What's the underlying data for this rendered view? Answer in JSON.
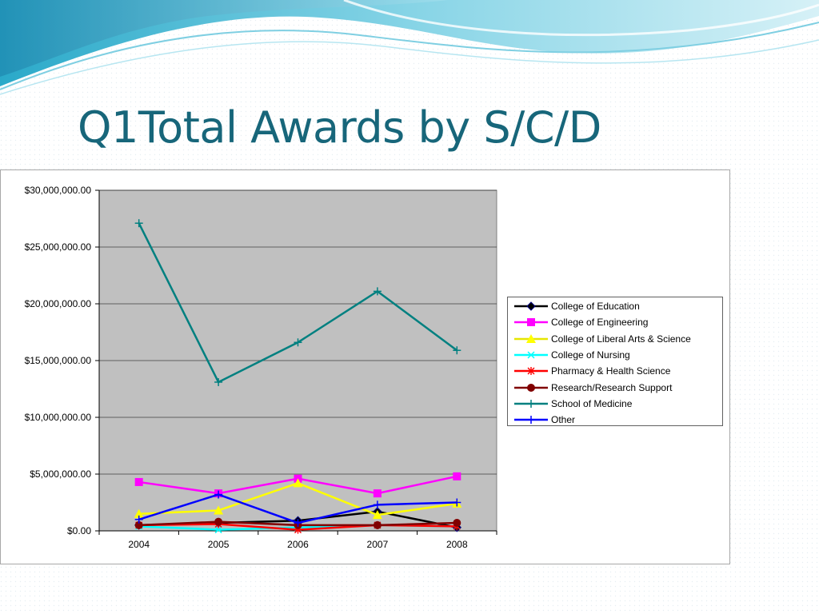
{
  "slide": {
    "title": "Q1Total Awards by S/C/D"
  },
  "chart_data": {
    "type": "line",
    "title": "",
    "xlabel": "",
    "ylabel": "",
    "categories": [
      "2004",
      "2005",
      "2006",
      "2007",
      "2008"
    ],
    "ylim": [
      0,
      30000000
    ],
    "ytick_values": [
      0,
      5000000,
      10000000,
      15000000,
      20000000,
      25000000,
      30000000
    ],
    "ytick_labels": [
      "$0.00",
      "$5,000,000.00",
      "$10,000,000.00",
      "$15,000,000.00",
      "$20,000,000.00",
      "$25,000,000.00",
      "$30,000,000.00"
    ],
    "grid": "horizontal",
    "legend_position": "right",
    "plot_background": "#c0c0c0",
    "series": [
      {
        "name": "College of Education",
        "color": "#000000",
        "marker": "diamond",
        "values": [
          500000,
          700000,
          900000,
          1700000,
          300000
        ]
      },
      {
        "name": "College of Engineering",
        "color": "#ff00ff",
        "marker": "square",
        "values": [
          4300000,
          3300000,
          4600000,
          3300000,
          4800000
        ]
      },
      {
        "name": "College of Liberal Arts & Science",
        "color": "#ffff00",
        "marker": "triangle",
        "values": [
          1500000,
          1800000,
          4200000,
          1400000,
          2400000
        ]
      },
      {
        "name": "College of Nursing",
        "color": "#00ffff",
        "marker": "x",
        "values": [
          400000,
          100000,
          300000,
          500000,
          400000
        ]
      },
      {
        "name": "Pharmacy & Health Science",
        "color": "#ff0000",
        "marker": "star",
        "values": [
          500000,
          600000,
          100000,
          500000,
          400000
        ]
      },
      {
        "name": "Research/Research Support",
        "color": "#800000",
        "marker": "circle",
        "values": [
          500000,
          800000,
          500000,
          500000,
          700000
        ]
      },
      {
        "name": "School of Medicine",
        "color": "#008080",
        "marker": "plus",
        "values": [
          27100000,
          13100000,
          16600000,
          21100000,
          15900000
        ]
      },
      {
        "name": "Other",
        "color": "#0000ff",
        "marker": "plus",
        "values": [
          1000000,
          3200000,
          700000,
          2300000,
          2500000
        ]
      }
    ]
  }
}
